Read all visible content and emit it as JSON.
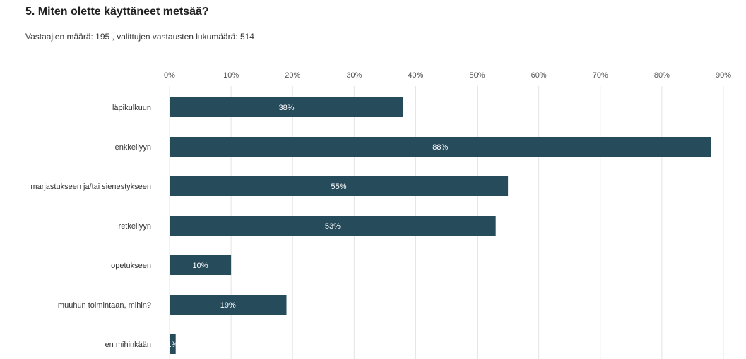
{
  "header": {
    "title": "5. Miten olette käyttäneet metsää?",
    "subtitle": "Vastaajien määrä: 195 , valittujen vastausten lukumäärä: 514"
  },
  "colors": {
    "bar": "#264b5b",
    "grid": "#e4e4e4"
  },
  "chart_data": {
    "type": "bar",
    "orientation": "horizontal",
    "title": "5. Miten olette käyttäneet metsää?",
    "categories": [
      "läpikulkuun",
      "lenkkeilyyn",
      "marjastukseen ja/tai sienestykseen",
      "retkeilyyn",
      "opetukseen",
      "muuhun toimintaan, mihin?",
      "en mihinkään"
    ],
    "values": [
      38,
      88,
      55,
      53,
      10,
      19,
      1
    ],
    "value_labels": [
      "38%",
      "88%",
      "55%",
      "53%",
      "10%",
      "19%",
      "1%"
    ],
    "xlim": [
      0,
      90
    ],
    "ticks": [
      0,
      10,
      20,
      30,
      40,
      50,
      60,
      70,
      80,
      90
    ],
    "tick_labels": [
      "0%",
      "10%",
      "20%",
      "30%",
      "40%",
      "50%",
      "60%",
      "70%",
      "80%",
      "90%"
    ],
    "axis_position": "top",
    "grid": true,
    "legend": false
  }
}
